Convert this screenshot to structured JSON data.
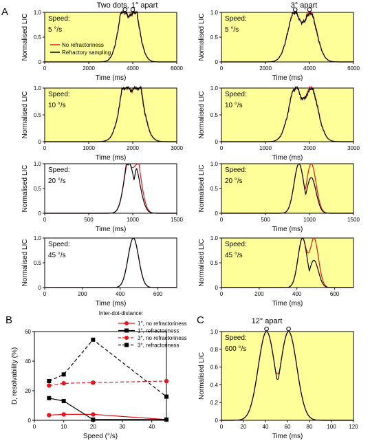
{
  "panel_labels": {
    "a": "A",
    "b": "B",
    "c": "C"
  },
  "headers": {
    "left": "Two dots, 1° apart",
    "right": "3° apart",
    "c": "12° apart"
  },
  "time_axis_label": "Time (ms)",
  "lic_axis_label": "Normalised LIC",
  "speed_label": "Speed:",
  "legend_a": [
    "No refractoriness",
    "Refractory sampling"
  ],
  "b_legend_title": "Inter-dot-distance:",
  "b_ylabel": "D, resolvability (%)",
  "b_xlabel": "Speed (°/s)",
  "colors": {
    "red": "#e8141c",
    "black": "#000000",
    "bg": "#ffff99"
  },
  "chart_data": [
    {
      "type": "line",
      "id": "a1",
      "speed_text": "5 °/s",
      "xlim": [
        0,
        6000
      ],
      "ylim": [
        0,
        1
      ],
      "xticks": [
        0,
        2000,
        4000,
        6000
      ],
      "yticks": [
        0,
        0.5,
        1.0
      ],
      "bg": true,
      "peaks": [
        3650,
        4000
      ],
      "separation": 0,
      "sigma": 300,
      "dip_red": 0.92,
      "dip_black": 0.92,
      "red_second": 1.0,
      "black_second": 0.97,
      "noise": true
    },
    {
      "type": "line",
      "id": "a2",
      "speed_text": "5 °/s",
      "xlim": [
        0,
        6000
      ],
      "ylim": [
        0,
        1
      ],
      "xticks": [
        0,
        2000,
        4000,
        6000
      ],
      "yticks": [
        0,
        0.5,
        1.0
      ],
      "bg": true,
      "peaks": [
        3350,
        4000
      ],
      "separation": 1,
      "sigma": 330,
      "dip_red": 0.8,
      "dip_black": 0.8,
      "red_second": 1.0,
      "black_second": 0.97,
      "noise": true
    },
    {
      "type": "line",
      "id": "a3",
      "speed_text": "10 °/s",
      "xlim": [
        0,
        3000
      ],
      "ylim": [
        0,
        1
      ],
      "xticks": [
        0,
        1000,
        2000,
        3000
      ],
      "yticks": [
        0,
        0.5,
        1.0
      ],
      "bg": true,
      "peaks": [
        1900,
        2050
      ],
      "separation": 0,
      "sigma": 180,
      "dip_red": 0.93,
      "dip_black": 0.96,
      "red_second": 1.0,
      "black_second": 0.95,
      "noise": true
    },
    {
      "type": "line",
      "id": "a4",
      "speed_text": "10 °/s",
      "xlim": [
        0,
        3000
      ],
      "ylim": [
        0,
        1
      ],
      "xticks": [
        0,
        1000,
        2000,
        3000
      ],
      "yticks": [
        0,
        0.5,
        1.0
      ],
      "bg": true,
      "peaks": [
        1700,
        2020
      ],
      "separation": 1,
      "sigma": 170,
      "dip_red": 0.8,
      "dip_black": 0.8,
      "red_second": 1.0,
      "black_second": 0.97,
      "noise": true
    },
    {
      "type": "line",
      "id": "a5",
      "speed_text": "20 °/s",
      "xlim": [
        0,
        1500
      ],
      "ylim": [
        0,
        1
      ],
      "xticks": [
        0,
        500,
        1000,
        1500
      ],
      "yticks": [
        0,
        0.5,
        1.0
      ],
      "bg": false,
      "peaks": [
        960,
        1040
      ],
      "separation": 0,
      "sigma": 60,
      "dip_red": 0.92,
      "dip_black": 0.6,
      "red_second": 0.93,
      "black_second": 0.6,
      "noise": false
    },
    {
      "type": "line",
      "id": "a6",
      "speed_text": "20 °/s",
      "xlim": [
        0,
        1500
      ],
      "ylim": [
        0,
        1
      ],
      "xticks": [
        0,
        500,
        1000,
        1500
      ],
      "yticks": [
        0,
        0.5,
        1.0
      ],
      "bg": true,
      "peaks": [
        880,
        1020
      ],
      "separation": 1,
      "sigma": 55,
      "dip_red": 0.6,
      "dip_black": 0.5,
      "red_second": 1.0,
      "black_second": 0.72,
      "noise": false
    },
    {
      "type": "line",
      "id": "a7",
      "speed_text": "45 °/s",
      "xlim": [
        0,
        700
      ],
      "ylim": [
        0,
        1
      ],
      "xticks": [
        0,
        200,
        400,
        600
      ],
      "yticks": [
        0,
        0.5,
        1.0
      ],
      "bg": false,
      "peaks": [
        470,
        470
      ],
      "separation": 0,
      "sigma": 28,
      "dip_red": 1.0,
      "dip_black": 1.0,
      "red_second": 1.0,
      "black_second": 1.0,
      "noise": false
    },
    {
      "type": "line",
      "id": "a8",
      "speed_text": "45 °/s",
      "xlim": [
        0,
        700
      ],
      "ylim": [
        0,
        1
      ],
      "xticks": [
        0,
        200,
        400,
        600
      ],
      "yticks": [
        0,
        0.5,
        1.0
      ],
      "bg": true,
      "peaks": [
        430,
        490
      ],
      "separation": 1,
      "sigma": 24,
      "dip_red": 0.78,
      "dip_black": 0.45,
      "red_second": 1.0,
      "black_second": 0.55,
      "noise": false
    },
    {
      "type": "line",
      "id": "c",
      "speed_text": "600 °/s",
      "xlim": [
        0,
        120
      ],
      "ylim": [
        0,
        1
      ],
      "xticks": [
        0,
        20,
        40,
        60,
        80,
        100,
        120
      ],
      "yticks": [
        0,
        0.2,
        0.4,
        0.6,
        0.8,
        1.0
      ],
      "bg": true,
      "peaks": [
        41,
        61
      ],
      "separation": 1,
      "sigma": 7.5,
      "dip_red": 0.7,
      "dip_black": 0.64,
      "red_second": 1.0,
      "black_second": 1.0,
      "noise": false
    },
    {
      "type": "scatter",
      "id": "b",
      "x": [
        5,
        10,
        20,
        45
      ],
      "xlim": [
        0,
        45
      ],
      "ylim": [
        0,
        60
      ],
      "xticks": [
        0,
        10,
        20,
        30,
        40
      ],
      "yticks": [
        0,
        20,
        40,
        60
      ],
      "series": [
        {
          "name": "1°, no refractoriness",
          "marker": "circle",
          "dash": false,
          "color": "#e8141c",
          "values": [
            3.5,
            4,
            4,
            0.5
          ]
        },
        {
          "name": "1°, refractoriness",
          "marker": "square",
          "dash": false,
          "color": "#000000",
          "values": [
            15,
            13,
            0.5,
            0.5
          ]
        },
        {
          "name": "3°, no refractoriness",
          "marker": "circle",
          "dash": true,
          "color": "#e8141c",
          "values": [
            23.5,
            25,
            25.5,
            26.5
          ]
        },
        {
          "name": "3°, refractoriness",
          "marker": "square",
          "dash": true,
          "color": "#000000",
          "values": [
            26.5,
            31,
            54.5,
            16
          ]
        }
      ]
    }
  ]
}
